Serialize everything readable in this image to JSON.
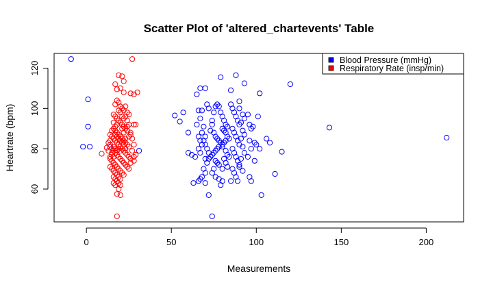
{
  "chart_data": {
    "type": "scatter",
    "title": "Scatter Plot of 'altered_chartevents' Table",
    "xlabel": "Measurements",
    "ylabel": "Heartrate (bpm)",
    "xlim": [
      -19,
      222
    ],
    "ylim": [
      43.7,
      127.3
    ],
    "xticks": [
      0,
      50,
      100,
      150,
      200
    ],
    "yticks": [
      60,
      80,
      100,
      120
    ],
    "grid": false,
    "legend_position": "top-right",
    "colors": {
      "Blood Pressure (mmHg)": "#0000ff",
      "Respiratory Rate (insp/min)": "#ff0000"
    },
    "series": [
      {
        "name": "Blood Pressure (mmHg)",
        "color": "#0000ff",
        "points": [
          [
            -9,
            124.5
          ],
          [
            1,
            104.5
          ],
          [
            1,
            91
          ],
          [
            2,
            81
          ],
          [
            -2,
            81
          ],
          [
            14,
            81
          ],
          [
            31,
            79
          ],
          [
            52,
            96.5
          ],
          [
            55,
            93.5
          ],
          [
            57,
            98
          ],
          [
            60,
            88
          ],
          [
            60,
            78
          ],
          [
            62,
            77
          ],
          [
            64,
            76
          ],
          [
            63,
            63
          ],
          [
            65,
            107
          ],
          [
            67,
            110
          ],
          [
            66,
            99
          ],
          [
            68,
            99
          ],
          [
            70,
            110
          ],
          [
            71,
            102
          ],
          [
            72,
            100
          ],
          [
            65,
            92
          ],
          [
            67,
            95
          ],
          [
            68,
            88
          ],
          [
            66,
            86
          ],
          [
            67,
            84
          ],
          [
            68,
            82
          ],
          [
            66,
            80
          ],
          [
            67,
            78
          ],
          [
            69,
            84
          ],
          [
            70,
            86
          ],
          [
            69,
            91
          ],
          [
            70,
            82
          ],
          [
            71,
            80
          ],
          [
            72,
            78
          ],
          [
            70,
            75
          ],
          [
            71,
            73
          ],
          [
            69,
            70
          ],
          [
            70,
            68
          ],
          [
            68,
            66
          ],
          [
            67,
            65
          ],
          [
            66,
            64
          ],
          [
            70,
            63
          ],
          [
            72,
            57
          ],
          [
            74,
            46.5
          ],
          [
            73,
            89
          ],
          [
            74,
            92
          ],
          [
            74,
            94
          ],
          [
            75,
            98
          ],
          [
            76,
            101
          ],
          [
            77,
            102
          ],
          [
            78,
            101
          ],
          [
            75,
            88
          ],
          [
            76,
            86
          ],
          [
            77,
            85
          ],
          [
            78,
            84
          ],
          [
            79,
            83
          ],
          [
            80,
            82
          ],
          [
            78,
            81
          ],
          [
            77,
            80
          ],
          [
            76,
            79
          ],
          [
            75,
            78
          ],
          [
            74,
            77
          ],
          [
            73,
            76
          ],
          [
            72,
            75
          ],
          [
            76,
            74
          ],
          [
            77,
            73
          ],
          [
            78,
            72
          ],
          [
            75,
            70
          ],
          [
            74,
            68
          ],
          [
            76,
            66
          ],
          [
            78,
            65
          ],
          [
            80,
            64
          ],
          [
            79,
            62
          ],
          [
            79,
            98
          ],
          [
            80,
            96
          ],
          [
            81,
            94
          ],
          [
            82,
            92
          ],
          [
            83,
            91
          ],
          [
            80,
            90
          ],
          [
            81,
            89
          ],
          [
            82,
            88
          ],
          [
            83,
            86
          ],
          [
            84,
            85
          ],
          [
            82,
            84
          ],
          [
            81,
            83
          ],
          [
            80,
            81
          ],
          [
            82,
            79
          ],
          [
            83,
            77
          ],
          [
            84,
            76
          ],
          [
            81,
            75
          ],
          [
            82,
            73
          ],
          [
            83,
            71
          ],
          [
            80,
            70
          ],
          [
            79,
            115.5
          ],
          [
            85,
            109
          ],
          [
            88,
            116.5
          ],
          [
            85,
            102
          ],
          [
            86,
            100
          ],
          [
            87,
            98
          ],
          [
            88,
            96
          ],
          [
            89,
            94
          ],
          [
            90,
            92
          ],
          [
            86,
            90
          ],
          [
            87,
            88
          ],
          [
            88,
            86
          ],
          [
            89,
            84
          ],
          [
            90,
            82
          ],
          [
            86,
            80
          ],
          [
            87,
            78
          ],
          [
            88,
            76
          ],
          [
            89,
            74
          ],
          [
            90,
            72
          ],
          [
            86,
            70
          ],
          [
            87,
            68
          ],
          [
            88,
            66
          ],
          [
            85,
            64
          ],
          [
            89,
            64
          ],
          [
            90,
            103.5
          ],
          [
            90,
            100
          ],
          [
            92,
            97
          ],
          [
            93,
            95
          ],
          [
            91,
            93
          ],
          [
            92,
            89
          ],
          [
            93,
            87
          ],
          [
            91,
            85
          ],
          [
            92,
            81
          ],
          [
            93,
            78
          ],
          [
            91,
            75
          ],
          [
            90,
            71
          ],
          [
            92,
            69
          ],
          [
            93,
            112.5
          ],
          [
            95,
            97
          ],
          [
            96,
            92
          ],
          [
            97,
            90
          ],
          [
            98,
            91
          ],
          [
            96,
            84
          ],
          [
            97,
            80
          ],
          [
            95,
            76
          ],
          [
            96,
            66
          ],
          [
            97,
            64
          ],
          [
            99,
            83
          ],
          [
            100,
            82
          ],
          [
            101,
            96
          ],
          [
            102,
            107.5
          ],
          [
            102,
            80
          ],
          [
            99,
            74
          ],
          [
            103,
            57
          ],
          [
            106,
            85
          ],
          [
            108,
            83
          ],
          [
            111,
            67.5
          ],
          [
            115,
            78.5
          ],
          [
            120,
            112
          ],
          [
            143,
            90.5
          ],
          [
            212,
            85.5
          ]
        ]
      },
      {
        "name": "Respiratory Rate (insp/min)",
        "color": "#ff0000",
        "points": [
          [
            27,
            124.5
          ],
          [
            19,
            116.5
          ],
          [
            21,
            116
          ],
          [
            17,
            112
          ],
          [
            22,
            113.5
          ],
          [
            18,
            109.5
          ],
          [
            20,
            110
          ],
          [
            22,
            108
          ],
          [
            26,
            107.5
          ],
          [
            28,
            107
          ],
          [
            30,
            108
          ],
          [
            17,
            102
          ],
          [
            18,
            104
          ],
          [
            19,
            103
          ],
          [
            20,
            101
          ],
          [
            21,
            100
          ],
          [
            22,
            99
          ],
          [
            23,
            101
          ],
          [
            24,
            98
          ],
          [
            25,
            97
          ],
          [
            16,
            97
          ],
          [
            17,
            96
          ],
          [
            18,
            95
          ],
          [
            19,
            94
          ],
          [
            20,
            93
          ],
          [
            21,
            92
          ],
          [
            22,
            91
          ],
          [
            23,
            90
          ],
          [
            24,
            89
          ],
          [
            25,
            92
          ],
          [
            28,
            92
          ],
          [
            29,
            92
          ],
          [
            16,
            90
          ],
          [
            17,
            89
          ],
          [
            18,
            88
          ],
          [
            19,
            87
          ],
          [
            20,
            86
          ],
          [
            21,
            85
          ],
          [
            22,
            84
          ],
          [
            23,
            83
          ],
          [
            24,
            82
          ],
          [
            25,
            81
          ],
          [
            26,
            88
          ],
          [
            15,
            86
          ],
          [
            16,
            85
          ],
          [
            17,
            84
          ],
          [
            18,
            83
          ],
          [
            19,
            82
          ],
          [
            20,
            81
          ],
          [
            21,
            80
          ],
          [
            22,
            79
          ],
          [
            23,
            78
          ],
          [
            24,
            77
          ],
          [
            25,
            76
          ],
          [
            26,
            75
          ],
          [
            15,
            80
          ],
          [
            16,
            79
          ],
          [
            17,
            78
          ],
          [
            18,
            77
          ],
          [
            19,
            76
          ],
          [
            20,
            75
          ],
          [
            21,
            74
          ],
          [
            22,
            73
          ],
          [
            23,
            72
          ],
          [
            24,
            71
          ],
          [
            25,
            70
          ],
          [
            14,
            75
          ],
          [
            15,
            74
          ],
          [
            16,
            73
          ],
          [
            17,
            72
          ],
          [
            18,
            71
          ],
          [
            19,
            70
          ],
          [
            20,
            69
          ],
          [
            21,
            68
          ],
          [
            22,
            67
          ],
          [
            14,
            71
          ],
          [
            15,
            70
          ],
          [
            16,
            69
          ],
          [
            17,
            68
          ],
          [
            18,
            67
          ],
          [
            19,
            66
          ],
          [
            20,
            65
          ],
          [
            16,
            66
          ],
          [
            17,
            65
          ],
          [
            18,
            64
          ],
          [
            19,
            63
          ],
          [
            20,
            62
          ],
          [
            16,
            63
          ],
          [
            17,
            62
          ],
          [
            19,
            60
          ],
          [
            18,
            57.5
          ],
          [
            20,
            57
          ],
          [
            18,
            46.5
          ],
          [
            9,
            77.5
          ],
          [
            13,
            83
          ],
          [
            14,
            82
          ],
          [
            12,
            80.5
          ],
          [
            26,
            87
          ],
          [
            27,
            85
          ],
          [
            28,
            82
          ],
          [
            27,
            79
          ],
          [
            28,
            76
          ],
          [
            29,
            77
          ],
          [
            28,
            74
          ],
          [
            26,
            73
          ],
          [
            25,
            86
          ],
          [
            24,
            94
          ],
          [
            23,
            96
          ],
          [
            22,
            88
          ],
          [
            21,
            90
          ],
          [
            20,
            98
          ],
          [
            19,
            99
          ],
          [
            18,
            92
          ],
          [
            17,
            91
          ],
          [
            16,
            93
          ],
          [
            15,
            89
          ],
          [
            14,
            87
          ],
          [
            24,
            91
          ],
          [
            23,
            85
          ],
          [
            22,
            95
          ],
          [
            21,
            96
          ],
          [
            20,
            84
          ],
          [
            19,
            85
          ],
          [
            18,
            86
          ],
          [
            17,
            87
          ],
          [
            16,
            81
          ],
          [
            15,
            77
          ],
          [
            14,
            84
          ],
          [
            13,
            79
          ],
          [
            22,
            82
          ],
          [
            23,
            80
          ],
          [
            21,
            83
          ],
          [
            20,
            79
          ],
          [
            19,
            80
          ],
          [
            18,
            79
          ],
          [
            17,
            80
          ],
          [
            16,
            76
          ],
          [
            15,
            78
          ],
          [
            14,
            76
          ]
        ]
      }
    ]
  }
}
